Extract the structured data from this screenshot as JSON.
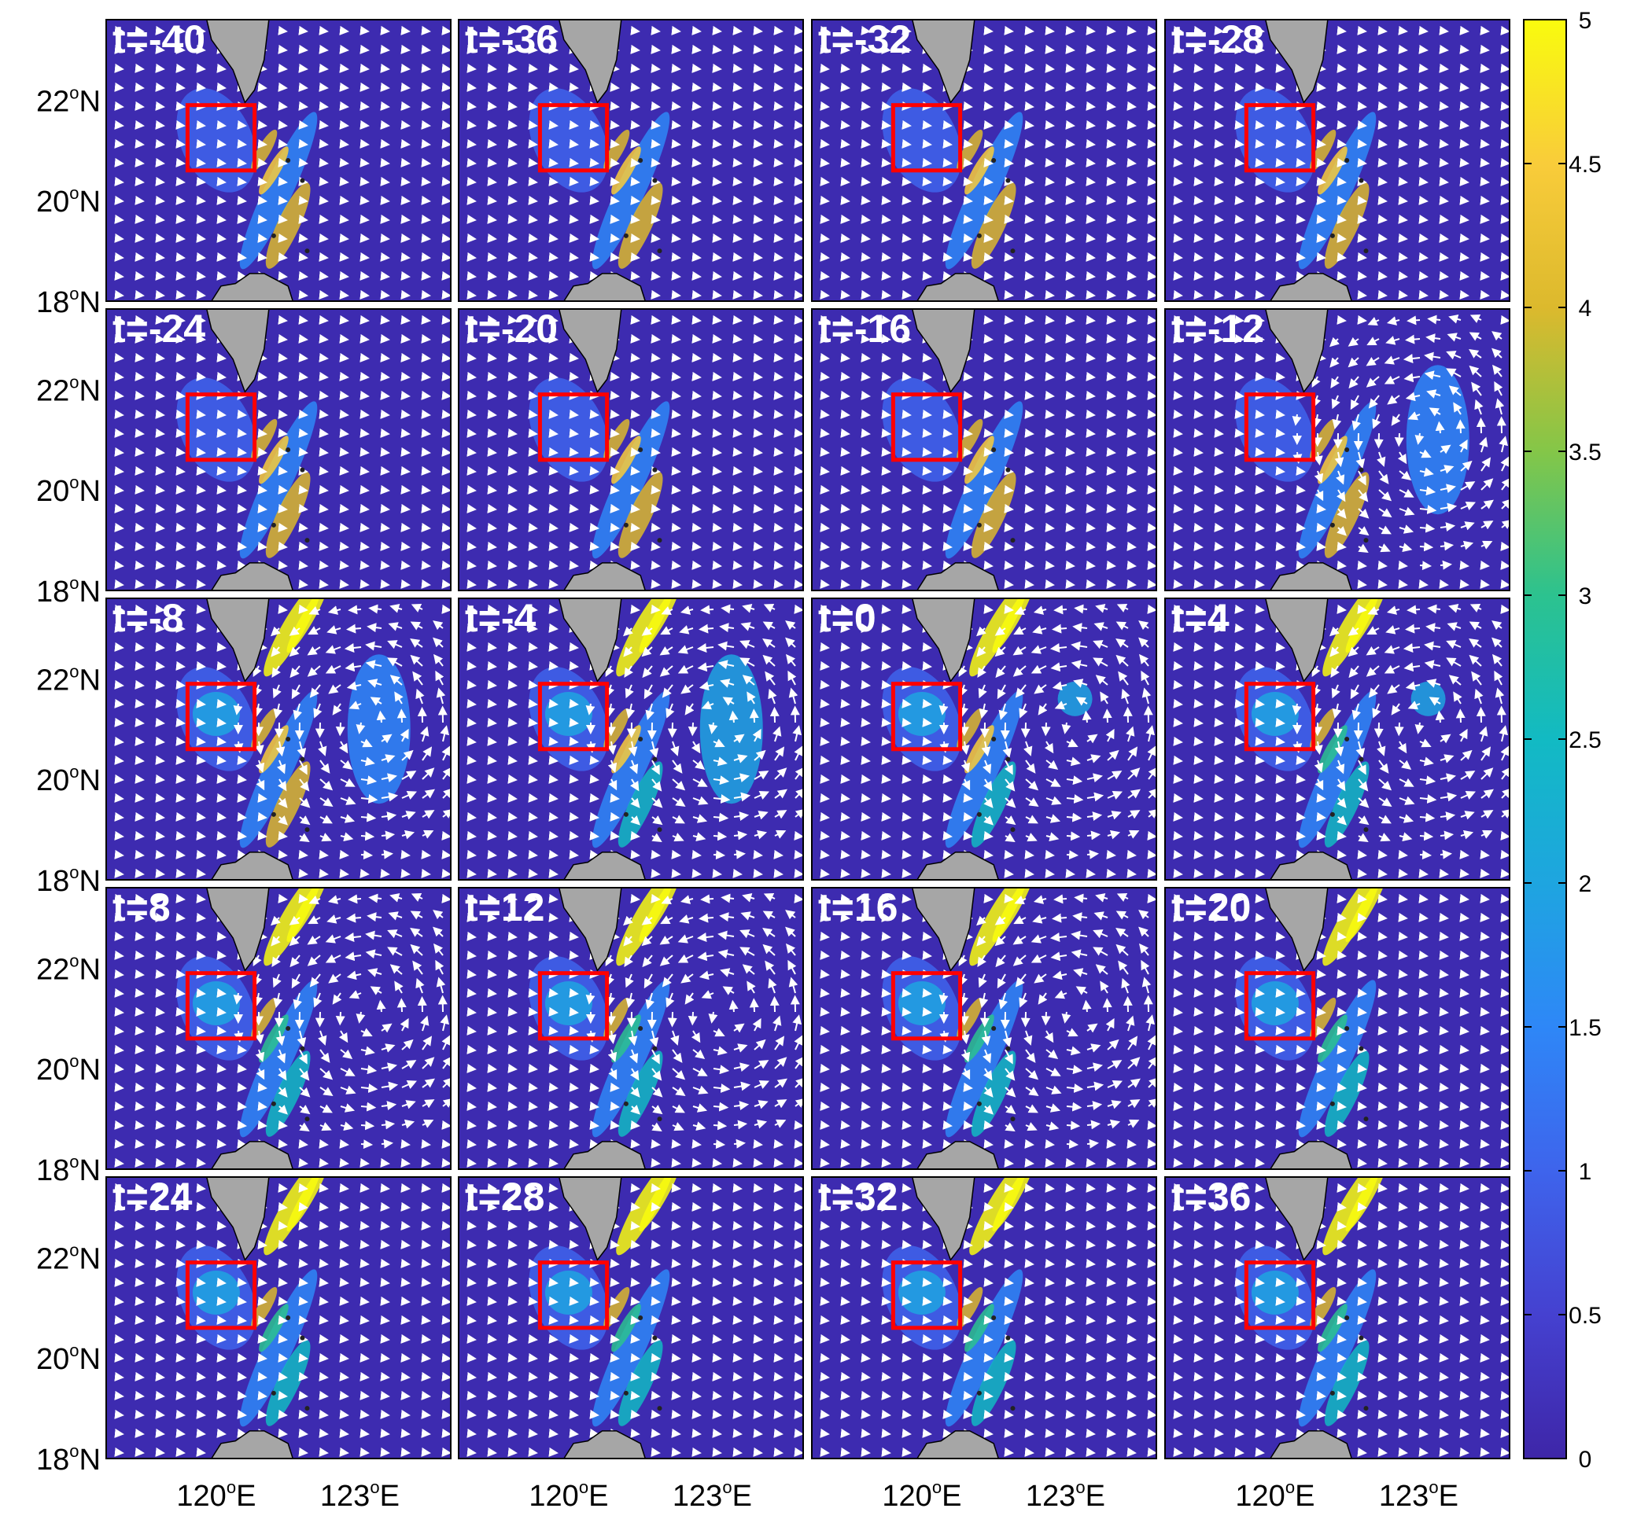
{
  "figure": {
    "panel_labels": [
      "t=-40",
      "t=-36",
      "t=-32",
      "t=-28",
      "t=-24",
      "t=-20",
      "t=-16",
      "t=-12",
      "t=-8",
      "t=-4",
      "t=0",
      "t=4",
      "t=8",
      "t=12",
      "t=16",
      "t=20",
      "t=24",
      "t=28",
      "t=32",
      "t=36"
    ]
  },
  "chart_data": {
    "type": "heatmap",
    "panels_grid": "5 rows x 4 columns",
    "panel_times": [
      -40,
      -36,
      -32,
      -28,
      -24,
      -20,
      -16,
      -12,
      -8,
      -4,
      0,
      4,
      8,
      12,
      16,
      20,
      24,
      28,
      32,
      36
    ],
    "y_ticks": [
      {
        "value": 22,
        "deg": "22",
        "hemi": "N"
      },
      {
        "value": 20,
        "deg": "20",
        "hemi": "N"
      },
      {
        "value": 18,
        "deg": "18",
        "hemi": "N"
      }
    ],
    "x_ticks": [
      {
        "value": 120,
        "deg": "120",
        "hemi": "E"
      },
      {
        "value": 123,
        "deg": "123",
        "hemi": "E"
      }
    ],
    "xlim": [
      117.7,
      124.9
    ],
    "ylim": [
      18,
      23.6
    ],
    "box_region": {
      "lon": [
        119.4,
        120.8
      ],
      "lat": [
        20.6,
        21.9
      ]
    },
    "colorbar": {
      "range": [
        0,
        5
      ],
      "ticks": [
        "0",
        "0.5",
        "1",
        "1.5",
        "2",
        "2.5",
        "3",
        "3.5",
        "4",
        "4.5",
        "5"
      ],
      "colormap": "parula",
      "levels": 10
    },
    "colors": {
      "ocean_background": "#3d2bb0",
      "land": "#a6a6a6",
      "box": "#ff0000",
      "vectors": "#ffffff"
    },
    "overlay": "white velocity vectors",
    "eddy_panels": [
      -12,
      -8,
      -4,
      0,
      4,
      8,
      12,
      16
    ]
  }
}
